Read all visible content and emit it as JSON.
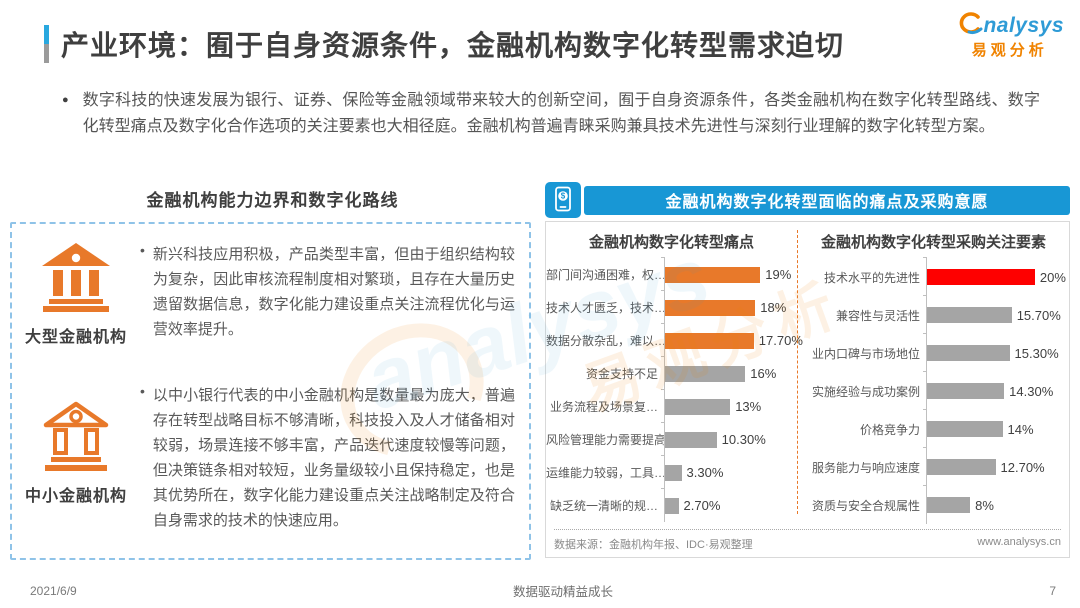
{
  "header": {
    "title": "产业环境：囿于自身资源条件，金融机构数字化转型需求迫切",
    "logo": {
      "brand": "nalysys",
      "brand_cn": "易观分析"
    }
  },
  "intro": {
    "bullet": "●",
    "text": "数字科技的快速发展为银行、证券、保险等金融领域带来较大的创新空间，囿于自身资源条件，各类金融机构在数字化转型路线、数字化转型痛点及数字化合作选项的关注要素也大相径庭。金融机构普遍青睐采购兼具技术先进性与深刻行业理解的数字化转型方案。"
  },
  "left_panel": {
    "title": "金融机构能力边界和数字化路线",
    "items": [
      {
        "icon": "bank-solid-icon",
        "label": "大型金融机构",
        "bullet": "•",
        "text": "新兴科技应用积极，产品类型丰富，但由于组织结构较为复杂，因此审核流程制度相对繁琐，且存在大量历史遗留数据信息，数字化能力建设重点关注流程优化与运营效率提升。"
      },
      {
        "icon": "bank-outline-icon",
        "label": "中小金融机构",
        "bullet": "•",
        "text": "以中小银行代表的中小金融机构是数量最为庞大，普遍存在转型战略目标不够清晰，科技投入及人才储备相对较弱，场景连接不够丰富，产品迭代速度较慢等问题，但决策链条相对较短，业务量级较小且保持稳定，也是其优势所在，数字化能力建设重点关注战略制定及符合自身需求的技术的快速应用。"
      }
    ]
  },
  "right_panel": {
    "banner": "金融机构数字化转型面临的痛点及采购意愿",
    "banner_icon": "mobile-payment-icon",
    "source": "数据来源：金融机构年报、IDC·易观整理",
    "website": "www.analysys.cn"
  },
  "chart_data": [
    {
      "type": "bar",
      "orientation": "horizontal",
      "title": "金融机构数字化转型痛点",
      "categories": [
        "部门间沟通困难，权…",
        "技术人才匮乏，技术…",
        "数据分散杂乱，难以…",
        "资金支持不足",
        "业务流程及场景复…",
        "风险管理能力需要提高",
        "运维能力较弱，工具…",
        "缺乏统一清晰的规…"
      ],
      "values": [
        19,
        18,
        17.7,
        16,
        13,
        10.3,
        3.3,
        2.7
      ],
      "value_labels": [
        "19%",
        "18%",
        "17.70%",
        "16%",
        "13%",
        "10.30%",
        "3.30%",
        "2.70%"
      ],
      "bar_colors": [
        "#e8792a",
        "#e8792a",
        "#e8792a",
        "#a5a5a5",
        "#a5a5a5",
        "#a5a5a5",
        "#a5a5a5",
        "#a5a5a5"
      ],
      "xlim": [
        0,
        20
      ],
      "grid": false,
      "legend": false
    },
    {
      "type": "bar",
      "orientation": "horizontal",
      "title": "金融机构数字化转型采购关注要素",
      "categories": [
        "技术水平的先进性",
        "兼容性与灵活性",
        "业内口碑与市场地位",
        "实施经验与成功案例",
        "价格竞争力",
        "服务能力与响应速度",
        "资质与安全合规属性"
      ],
      "values": [
        20,
        15.7,
        15.3,
        14.3,
        14,
        12.7,
        8
      ],
      "value_labels": [
        "20%",
        "15.70%",
        "15.30%",
        "14.30%",
        "14%",
        "12.70%",
        "8%"
      ],
      "bar_colors": [
        "#fe0000",
        "#a5a5a5",
        "#a5a5a5",
        "#a5a5a5",
        "#a5a5a5",
        "#a5a5a5",
        "#a5a5a5"
      ],
      "xlim": [
        0,
        20
      ],
      "grid": false,
      "legend": false
    }
  ],
  "footer": {
    "date": "2021/6/9",
    "slogan": "数据驱动精益成长",
    "page": "7"
  },
  "watermark": {
    "en": "analysys",
    "cn": "易观分析"
  },
  "colors": {
    "banner_blue": "#1897d5",
    "bar_orange": "#e8792a",
    "bar_gray": "#a5a5a5",
    "bar_red": "#fe0000",
    "logo_blue": "#2e9bd6",
    "logo_orange": "#f08300",
    "panel_dash_blue": "#8fc3e8"
  }
}
